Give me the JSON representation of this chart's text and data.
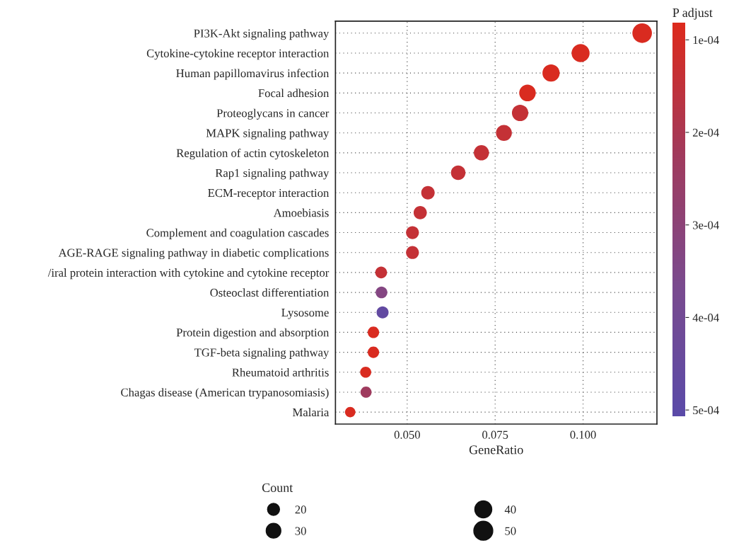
{
  "chart_data": {
    "type": "bubble",
    "categories": [
      "PI3K-Akt signaling pathway",
      "Cytokine-cytokine receptor interaction",
      "Human papillomavirus infection",
      "Focal adhesion",
      "Proteoglycans in cancer",
      "MAPK signaling pathway",
      "Regulation of actin cytoskeleton",
      "Rap1 signaling pathway",
      "ECM-receptor interaction",
      "Amoebiasis",
      "Complement and coagulation cascades",
      "AGE-RAGE signaling pathway in diabetic complications",
      "/iral protein interaction with cytokine and cytokine receptor",
      "Osteoclast differentiation",
      "Lysosome",
      "Protein digestion and absorption",
      "TGF-beta signaling pathway",
      "Rheumatoid arthritis",
      "Chagas disease (American trypanosomiasis)",
      "Malaria"
    ],
    "orientation": "horizontal",
    "values": [
      0.1168,
      0.0993,
      0.0909,
      0.0842,
      0.0821,
      0.0775,
      0.0711,
      0.0645,
      0.0559,
      0.0537,
      0.0515,
      0.0515,
      0.0426,
      0.0427,
      0.043,
      0.0404,
      0.0404,
      0.0382,
      0.0383,
      0.0338
    ],
    "sizes": [
      53,
      45,
      41,
      38,
      37,
      35,
      32,
      29,
      25,
      24,
      23,
      23,
      19,
      19,
      20,
      18,
      18,
      17,
      17,
      15
    ],
    "size_legend": [
      20,
      30,
      40,
      50
    ],
    "cvalues": [
      9e-05,
      9e-05,
      9e-05,
      9e-05,
      0.00014,
      0.00014,
      0.00014,
      0.00014,
      0.00014,
      0.00014,
      0.00014,
      0.00014,
      0.00014,
      0.00033,
      0.00047,
      9e-05,
      9e-05,
      9e-05,
      0.00023,
      9e-05
    ],
    "clim": [
      8.16e-05,
      0.000507
    ],
    "cticks": [
      {
        "value": 0.0001,
        "label": "1e-04"
      },
      {
        "value": 0.0002,
        "label": "2e-04"
      },
      {
        "value": 0.0003,
        "label": "3e-04"
      },
      {
        "value": 0.0004,
        "label": "4e-04"
      },
      {
        "value": 0.0005,
        "label": "5e-04"
      }
    ],
    "clabel": "P adjust",
    "legend_title": "Count",
    "xlabel": "GeneRatio",
    "xlim": [
      0.0296,
      0.121
    ],
    "xticks": [
      {
        "value": 0.05,
        "label": "0.050"
      },
      0.075,
      {
        "value": 0.1,
        "label": "0.100"
      }
    ],
    "grid": true,
    "line_style": "dotted"
  }
}
